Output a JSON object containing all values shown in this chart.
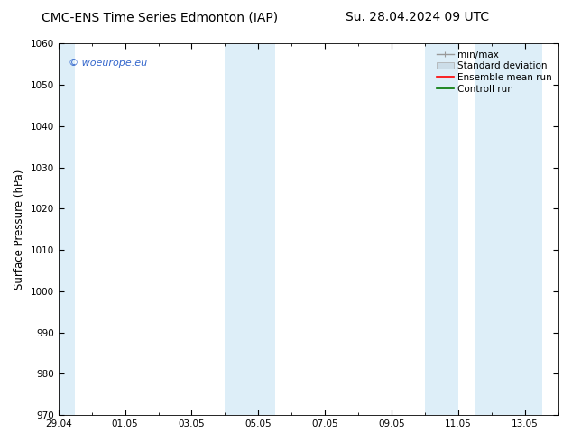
{
  "title_left": "CMC-ENS Time Series Edmonton (IAP)",
  "title_right": "Su. 28.04.2024 09 UTC",
  "ylabel": "Surface Pressure (hPa)",
  "ylim": [
    970,
    1060
  ],
  "yticks": [
    970,
    980,
    990,
    1000,
    1010,
    1020,
    1030,
    1040,
    1050,
    1060
  ],
  "xtick_labels": [
    "29.04",
    "01.05",
    "03.05",
    "05.05",
    "07.05",
    "09.05",
    "11.05",
    "13.05"
  ],
  "xtick_positions": [
    0,
    2,
    4,
    6,
    8,
    10,
    12,
    14
  ],
  "xlim": [
    0,
    15
  ],
  "shaded_bands": [
    {
      "start": 0.0,
      "end": 0.5,
      "color": "#ddeef8"
    },
    {
      "start": 5.0,
      "end": 6.5,
      "color": "#ddeef8"
    },
    {
      "start": 11.0,
      "end": 12.0,
      "color": "#ddeef8"
    },
    {
      "start": 12.5,
      "end": 14.5,
      "color": "#ddeef8"
    }
  ],
  "watermark_text": "© woeurope.eu",
  "watermark_color": "#3366cc",
  "background_color": "#ffffff",
  "legend_items": [
    {
      "label": "min/max",
      "color": "#999999"
    },
    {
      "label": "Standard deviation",
      "color": "#ccdde8"
    },
    {
      "label": "Ensemble mean run",
      "color": "#ff0000"
    },
    {
      "label": "Controll run",
      "color": "#007700"
    }
  ],
  "title_fontsize": 10,
  "tick_fontsize": 7.5,
  "ylabel_fontsize": 8.5,
  "legend_fontsize": 7.5
}
